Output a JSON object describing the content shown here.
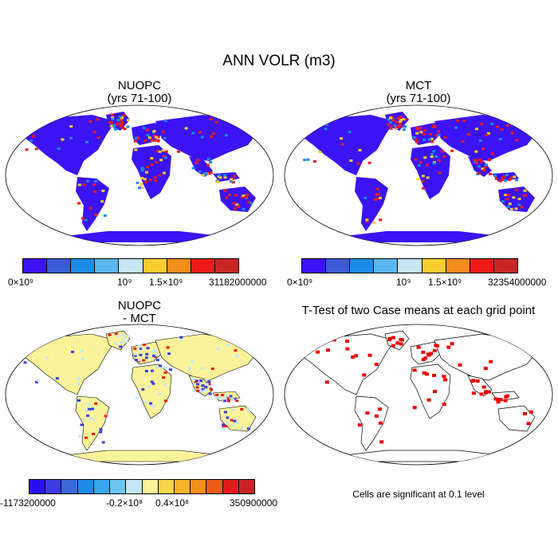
{
  "title": "ANN VOLR (m3)",
  "panels": {
    "p1": {
      "title_line1": "NUOPC",
      "title_line2": "(yrs 71-100)"
    },
    "p2": {
      "title_line1": "MCT",
      "title_line2": "(yrs 71-100)"
    },
    "p3": {
      "title_line1": "NUOPC",
      "title_line2": "- MCT"
    },
    "p4": {
      "title": "T-Test of two Case means at each grid point",
      "note": "Cells are significant at 0.1 level"
    }
  },
  "colorbars": {
    "cb1": {
      "colors": [
        "#3b13f5",
        "#3a5ad6",
        "#1e8be6",
        "#5ab6ee",
        "#c4e6f5",
        "#f8cd2d",
        "#f38e1a",
        "#ee1a1a",
        "#c82626"
      ],
      "labels": {
        "min": "0×10⁹",
        "mid1": "10⁹",
        "mid2": "1.5×10⁹",
        "max": "31182000000"
      }
    },
    "cb2": {
      "colors": [
        "#3b13f5",
        "#3a5ad6",
        "#1e8be6",
        "#5ab6ee",
        "#c4e6f5",
        "#f8cd2d",
        "#f38e1a",
        "#ee1a1a",
        "#c82626"
      ],
      "labels": {
        "min": "0×10⁹",
        "mid1": "10⁹",
        "mid2": "1.5×10⁹",
        "max": "32354000000"
      }
    },
    "cb3": {
      "colors": [
        "#2a10f0",
        "#3b3de0",
        "#3a6ad8",
        "#1e8be6",
        "#38a6ea",
        "#6cc4f0",
        "#c4e6f5",
        "#fbf39a",
        "#f9d64a",
        "#f5b42a",
        "#f38e1a",
        "#ee5a1a",
        "#e21a1a",
        "#c82626"
      ],
      "labels": {
        "min": "-1173200000",
        "mid1": "-0.2×10⁸",
        "mid2": "0.4×10⁸",
        "max": "350900000"
      }
    }
  },
  "map_colors": {
    "land_low": "#3b13f5",
    "land_high_a": "#1e8be6",
    "land_high_b": "#ee1a1a",
    "land_high_c": "#f8cd2d",
    "diff_base": "#fbf39a",
    "diff_blue": "#c4e6f5",
    "diff_deep": "#3b3de0",
    "diff_red": "#ee1a1a",
    "signif": "#ee0000",
    "ocean": "#ffffff",
    "outline": "#000000"
  }
}
